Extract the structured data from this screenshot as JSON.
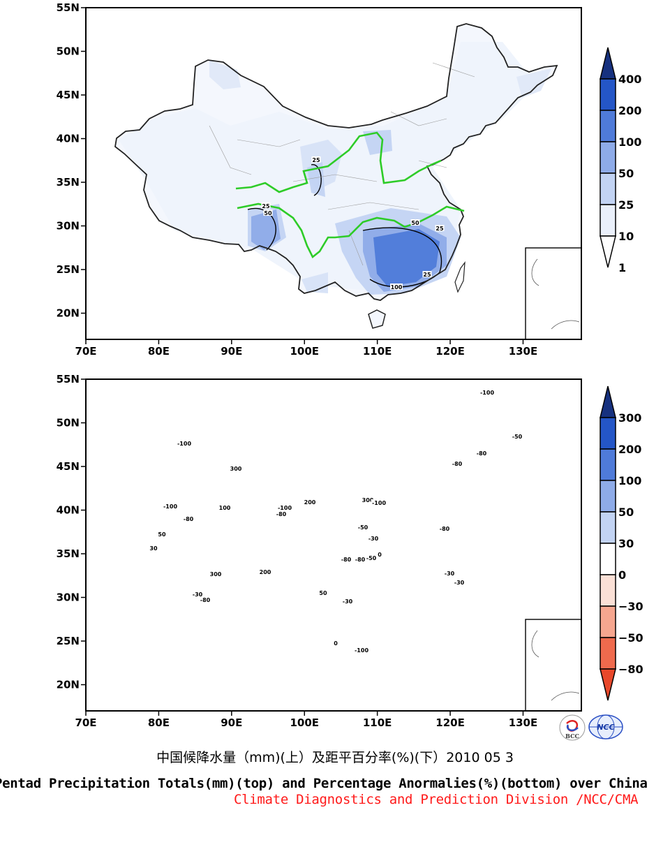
{
  "figure": {
    "title_cn": "中国候降水量（mm)(上）及距平百分率(%)(下）2010 05 3",
    "title_en": "Pentad Precipitation Totals(mm)(top) and Percentage Anormalies(%)(bottom) over China",
    "credit": "Climate Diagnostics and Prediction Division /NCC/CMA",
    "logos": [
      "BCC",
      "NCC"
    ]
  },
  "chart_data": [
    {
      "type": "heatmap",
      "panel": "top",
      "variable": "Pentad Precipitation Totals (mm)",
      "x_ticks": [
        "70E",
        "80E",
        "90E",
        "100E",
        "110E",
        "120E",
        "130E"
      ],
      "y_ticks": [
        "20N",
        "25N",
        "30N",
        "35N",
        "40N",
        "45N",
        "50N",
        "55N"
      ],
      "lon_range": [
        70,
        138
      ],
      "lat_range": [
        17,
        55
      ],
      "colorbar": {
        "levels": [
          "1",
          "10",
          "25",
          "50",
          "100",
          "200",
          "400"
        ],
        "colors": [
          "#ffffff",
          "#eaf0fb",
          "#c2d3f3",
          "#8eabe8",
          "#4f7bd9",
          "#2456c7",
          "#16317f"
        ]
      },
      "contour_labels": [
        "25",
        "25",
        "50",
        "50",
        "100",
        "25",
        "25"
      ]
    },
    {
      "type": "heatmap",
      "panel": "bottom",
      "variable": "Percentage Anomalies (%)",
      "x_ticks": [
        "70E",
        "80E",
        "90E",
        "100E",
        "110E",
        "120E",
        "130E"
      ],
      "y_ticks": [
        "20N",
        "25N",
        "30N",
        "35N",
        "40N",
        "45N",
        "50N",
        "55N"
      ],
      "lon_range": [
        70,
        138
      ],
      "lat_range": [
        17,
        55
      ],
      "colorbar": {
        "levels": [
          "300",
          "200",
          "100",
          "50",
          "30",
          "0",
          "−30",
          "−50",
          "−80"
        ],
        "colors": [
          "#16317f",
          "#2456c7",
          "#4f7bd9",
          "#8eabe8",
          "#c2d3f3",
          "#ffffff",
          "#fbe0d6",
          "#f6a68f",
          "#ef6a4d",
          "#e8482b"
        ]
      },
      "contour_labels": [
        "-100",
        "50",
        "300",
        "-100",
        "-80",
        "100",
        "200",
        "300",
        "200",
        "-80",
        "-50",
        "-30",
        "-80",
        "30",
        "-30",
        "-100",
        "-80",
        "300",
        "-100",
        "-80",
        "-50",
        "-30",
        "0",
        "50",
        "-30",
        "-80",
        "-100",
        "-50",
        "-80",
        "-30",
        "0",
        "-80",
        "-100"
      ]
    }
  ]
}
